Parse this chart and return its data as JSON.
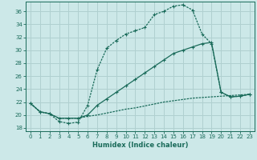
{
  "xlabel": "Humidex (Indice chaleur)",
  "bg_color": "#cce8e8",
  "grid_color": "#b0d0d0",
  "line_color": "#1a6b5a",
  "xlim": [
    -0.5,
    23.5
  ],
  "ylim": [
    17.5,
    37.5
  ],
  "xticks": [
    0,
    1,
    2,
    3,
    4,
    5,
    6,
    7,
    8,
    9,
    10,
    11,
    12,
    13,
    14,
    15,
    16,
    17,
    18,
    19,
    20,
    21,
    22,
    23
  ],
  "yticks": [
    18,
    20,
    22,
    24,
    26,
    28,
    30,
    32,
    34,
    36
  ],
  "curve1_x": [
    0,
    1,
    2,
    3,
    4,
    5,
    6,
    7,
    8,
    9,
    10,
    11,
    12,
    13,
    14,
    15,
    16,
    17,
    18,
    19,
    20,
    21,
    22,
    23
  ],
  "curve1_y": [
    21.8,
    20.5,
    20.2,
    19.0,
    18.7,
    18.9,
    21.5,
    27.0,
    30.3,
    31.5,
    32.5,
    33.0,
    33.5,
    35.5,
    36.0,
    36.8,
    37.0,
    36.2,
    32.5,
    31.0,
    23.5,
    22.8,
    22.9,
    23.2
  ],
  "curve2_x": [
    0,
    1,
    2,
    3,
    4,
    5,
    6,
    7,
    8,
    9,
    10,
    11,
    12,
    13,
    14,
    15,
    16,
    17,
    18,
    19,
    20,
    21,
    22,
    23
  ],
  "curve2_y": [
    21.8,
    20.5,
    20.2,
    19.5,
    19.5,
    19.5,
    20.0,
    21.5,
    22.5,
    23.5,
    24.5,
    25.5,
    26.5,
    27.5,
    28.5,
    29.5,
    30.0,
    30.5,
    31.0,
    31.2,
    23.5,
    22.8,
    22.9,
    23.2
  ],
  "curve3_x": [
    0,
    1,
    2,
    3,
    4,
    5,
    6,
    7,
    8,
    9,
    10,
    11,
    12,
    13,
    14,
    15,
    16,
    17,
    18,
    19,
    20,
    21,
    22,
    23
  ],
  "curve3_y": [
    21.8,
    20.5,
    20.2,
    19.5,
    19.5,
    19.5,
    19.8,
    20.0,
    20.3,
    20.6,
    20.9,
    21.1,
    21.4,
    21.7,
    22.0,
    22.2,
    22.4,
    22.6,
    22.7,
    22.8,
    22.9,
    23.0,
    23.1,
    23.2
  ]
}
